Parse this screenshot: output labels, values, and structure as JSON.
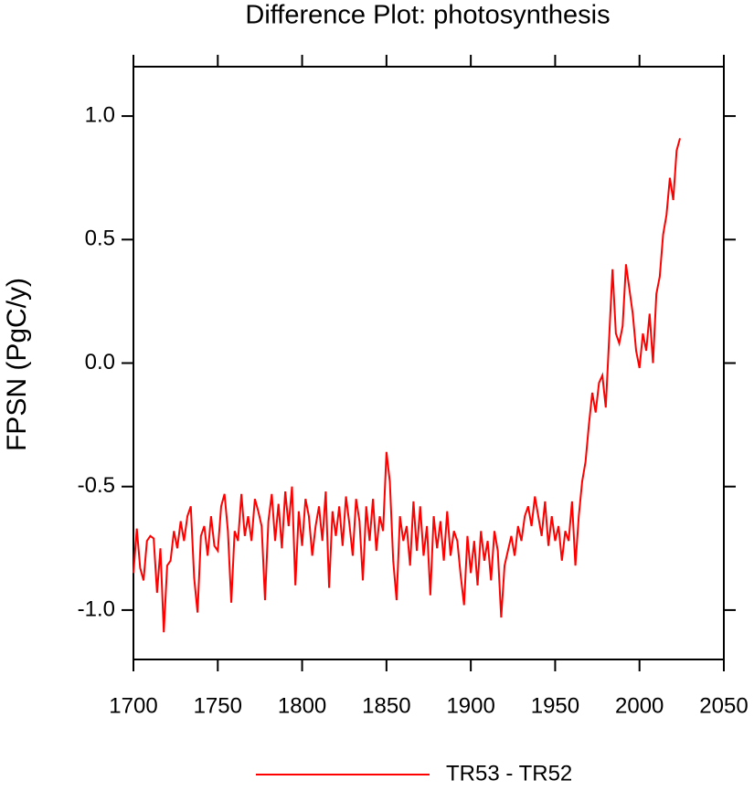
{
  "chart_data": {
    "type": "line",
    "title": "Difference Plot: photosynthesis",
    "ylabel": "FPSN  (PgC/y)",
    "x": [
      1700,
      1702,
      1704,
      1706,
      1708,
      1710,
      1712,
      1714,
      1716,
      1718,
      1720,
      1722,
      1724,
      1726,
      1728,
      1730,
      1732,
      1734,
      1736,
      1738,
      1740,
      1742,
      1744,
      1746,
      1748,
      1750,
      1752,
      1754,
      1756,
      1758,
      1760,
      1762,
      1764,
      1766,
      1768,
      1770,
      1772,
      1774,
      1776,
      1778,
      1780,
      1782,
      1784,
      1786,
      1788,
      1790,
      1792,
      1794,
      1796,
      1798,
      1800,
      1802,
      1804,
      1806,
      1808,
      1810,
      1812,
      1814,
      1816,
      1818,
      1820,
      1822,
      1824,
      1826,
      1828,
      1830,
      1832,
      1834,
      1836,
      1838,
      1840,
      1842,
      1844,
      1846,
      1848,
      1850,
      1852,
      1854,
      1856,
      1858,
      1860,
      1862,
      1864,
      1866,
      1868,
      1870,
      1872,
      1874,
      1876,
      1878,
      1880,
      1882,
      1884,
      1886,
      1888,
      1890,
      1892,
      1894,
      1896,
      1898,
      1900,
      1902,
      1904,
      1906,
      1908,
      1910,
      1912,
      1914,
      1916,
      1918,
      1920,
      1922,
      1924,
      1926,
      1928,
      1930,
      1932,
      1934,
      1936,
      1938,
      1940,
      1942,
      1944,
      1946,
      1948,
      1950,
      1952,
      1954,
      1956,
      1958,
      1960,
      1962,
      1964,
      1966,
      1968,
      1970,
      1972,
      1974,
      1976,
      1978,
      1980,
      1982,
      1984,
      1986,
      1988,
      1990,
      1992,
      1994,
      1996,
      1998,
      2000,
      2002,
      2004,
      2006,
      2008,
      2010,
      2012,
      2014,
      2016,
      2018,
      2020,
      2022,
      2024
    ],
    "series": [
      {
        "name": "TR53 - TR52",
        "color": "#ff0000",
        "values": [
          -0.85,
          -0.67,
          -0.83,
          -0.88,
          -0.72,
          -0.7,
          -0.71,
          -0.93,
          -0.75,
          -1.09,
          -0.82,
          -0.8,
          -0.68,
          -0.75,
          -0.64,
          -0.72,
          -0.62,
          -0.58,
          -0.87,
          -1.01,
          -0.7,
          -0.66,
          -0.78,
          -0.62,
          -0.74,
          -0.76,
          -0.58,
          -0.53,
          -0.68,
          -0.97,
          -0.68,
          -0.72,
          -0.53,
          -0.7,
          -0.62,
          -0.72,
          -0.55,
          -0.6,
          -0.66,
          -0.96,
          -0.64,
          -0.53,
          -0.72,
          -0.57,
          -0.75,
          -0.52,
          -0.66,
          -0.5,
          -0.9,
          -0.6,
          -0.74,
          -0.55,
          -0.62,
          -0.78,
          -0.66,
          -0.58,
          -0.72,
          -0.52,
          -0.91,
          -0.6,
          -0.7,
          -0.58,
          -0.74,
          -0.54,
          -0.65,
          -0.78,
          -0.55,
          -0.64,
          -0.88,
          -0.58,
          -0.72,
          -0.55,
          -0.76,
          -0.62,
          -0.68,
          -0.36,
          -0.48,
          -0.8,
          -0.96,
          -0.62,
          -0.72,
          -0.66,
          -0.82,
          -0.56,
          -0.76,
          -0.58,
          -0.78,
          -0.66,
          -0.94,
          -0.62,
          -0.75,
          -0.64,
          -0.8,
          -0.6,
          -0.78,
          -0.68,
          -0.72,
          -0.86,
          -0.98,
          -0.7,
          -0.85,
          -0.72,
          -0.9,
          -0.68,
          -0.8,
          -0.72,
          -0.88,
          -0.68,
          -0.76,
          -1.03,
          -0.82,
          -0.76,
          -0.7,
          -0.78,
          -0.66,
          -0.72,
          -0.62,
          -0.58,
          -0.66,
          -0.54,
          -0.62,
          -0.7,
          -0.56,
          -0.74,
          -0.62,
          -0.72,
          -0.66,
          -0.8,
          -0.68,
          -0.72,
          -0.56,
          -0.82,
          -0.62,
          -0.48,
          -0.4,
          -0.25,
          -0.12,
          -0.2,
          -0.08,
          -0.05,
          -0.18,
          0.1,
          0.38,
          0.12,
          0.08,
          0.15,
          0.4,
          0.3,
          0.2,
          0.05,
          -0.02,
          0.12,
          0.05,
          0.2,
          0.0,
          0.28,
          0.35,
          0.52,
          0.6,
          0.75,
          0.66,
          0.86,
          0.91
        ]
      }
    ],
    "xlim": [
      1700,
      2050
    ],
    "xticks": [
      1700,
      1750,
      1800,
      1850,
      1900,
      1950,
      2000,
      2050
    ],
    "ylim": [
      -1.2,
      1.2
    ],
    "yticks": [
      {
        "value": -1,
        "label": "-1.0"
      },
      -0.5,
      {
        "value": 0,
        "label": "0.0"
      },
      0.5,
      {
        "value": 1,
        "label": "1.0"
      }
    ],
    "legend": "bottom"
  }
}
